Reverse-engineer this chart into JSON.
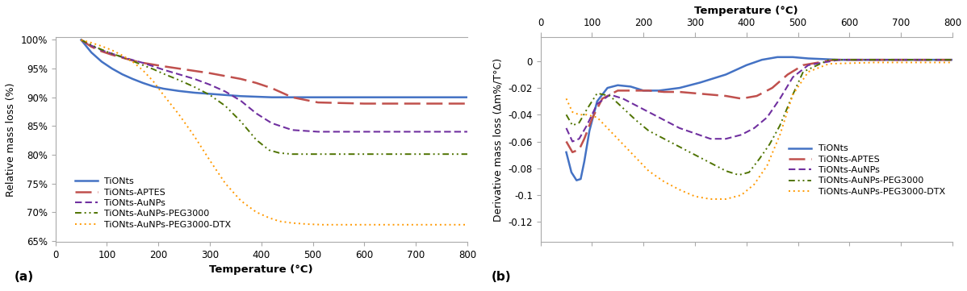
{
  "panel_a": {
    "xlabel": "Temperature (°C)",
    "ylabel": "Relative mass loss (%)",
    "xlim": [
      0,
      800
    ],
    "ylim": [
      0.648,
      1.005
    ],
    "yticks": [
      0.65,
      0.7,
      0.75,
      0.8,
      0.85,
      0.9,
      0.95,
      1.0
    ],
    "ytick_labels": [
      "65%",
      "70%",
      "75%",
      "80%",
      "85%",
      "90%",
      "95%",
      "100%"
    ],
    "xticks": [
      0,
      100,
      200,
      300,
      400,
      500,
      600,
      700,
      800
    ],
    "series": {
      "TiONts": {
        "color": "#4472C4",
        "lw": 1.8,
        "ls": "solid",
        "x": [
          50,
          70,
          90,
          110,
          130,
          150,
          170,
          190,
          210,
          240,
          270,
          300,
          330,
          360,
          390,
          420,
          460,
          520,
          600,
          700,
          800
        ],
        "y": [
          1.0,
          0.978,
          0.962,
          0.95,
          0.94,
          0.932,
          0.925,
          0.919,
          0.915,
          0.911,
          0.908,
          0.906,
          0.904,
          0.902,
          0.901,
          0.9,
          0.9,
          0.9,
          0.9,
          0.9,
          0.9
        ]
      },
      "TiONts-APTES": {
        "color": "#C0504D",
        "lw": 1.8,
        "ls": "dashed_long",
        "x": [
          50,
          70,
          90,
          110,
          130,
          150,
          170,
          190,
          210,
          240,
          270,
          300,
          330,
          360,
          390,
          420,
          460,
          510,
          600,
          700,
          800
        ],
        "y": [
          1.0,
          0.988,
          0.98,
          0.974,
          0.969,
          0.964,
          0.96,
          0.957,
          0.954,
          0.95,
          0.946,
          0.942,
          0.937,
          0.932,
          0.925,
          0.916,
          0.9,
          0.891,
          0.889,
          0.889,
          0.889
        ]
      },
      "TiONts-AuNPs": {
        "color": "#7030A0",
        "lw": 1.5,
        "ls": "dashed_short",
        "x": [
          50,
          70,
          90,
          110,
          130,
          150,
          170,
          190,
          210,
          240,
          270,
          300,
          330,
          360,
          390,
          420,
          460,
          510,
          600,
          700,
          800
        ],
        "y": [
          1.0,
          0.99,
          0.982,
          0.976,
          0.97,
          0.965,
          0.96,
          0.954,
          0.948,
          0.94,
          0.932,
          0.922,
          0.91,
          0.894,
          0.872,
          0.855,
          0.843,
          0.84,
          0.84,
          0.84,
          0.84
        ]
      },
      "TiONts-AuNPs-PEG3000": {
        "color": "#4F7300",
        "lw": 1.4,
        "ls": "dashed_dot",
        "x": [
          50,
          70,
          90,
          110,
          130,
          150,
          170,
          190,
          210,
          240,
          270,
          300,
          330,
          360,
          390,
          415,
          435,
          460,
          500,
          600,
          700,
          800
        ],
        "y": [
          1.0,
          0.991,
          0.983,
          0.976,
          0.97,
          0.963,
          0.956,
          0.949,
          0.941,
          0.93,
          0.918,
          0.904,
          0.885,
          0.858,
          0.826,
          0.808,
          0.803,
          0.801,
          0.801,
          0.801,
          0.801,
          0.801
        ]
      },
      "TiONts-AuNPs-PEG3000-DTX": {
        "color": "#FF9900",
        "lw": 1.4,
        "ls": "dotted",
        "x": [
          50,
          70,
          90,
          110,
          130,
          150,
          170,
          190,
          210,
          240,
          270,
          300,
          330,
          360,
          390,
          415,
          435,
          460,
          490,
          520,
          600,
          700,
          800
        ],
        "y": [
          1.0,
          0.995,
          0.989,
          0.982,
          0.973,
          0.962,
          0.947,
          0.928,
          0.904,
          0.87,
          0.832,
          0.79,
          0.75,
          0.72,
          0.7,
          0.69,
          0.684,
          0.681,
          0.679,
          0.678,
          0.678,
          0.678,
          0.678
        ]
      }
    },
    "legend_order": [
      "TiONts",
      "TiONts-APTES",
      "TiONts-AuNPs",
      "TiONts-AuNPs-PEG3000",
      "TiONts-AuNPs-PEG3000-DTX"
    ],
    "label": "(a)"
  },
  "panel_b": {
    "top_xlabel": "Temperature (°C)",
    "ylabel": "Derivative mass loss (Δm%/T°C)",
    "xlim": [
      0,
      800
    ],
    "ylim": [
      -0.135,
      0.018
    ],
    "yticks": [
      0.0,
      -0.02,
      -0.04,
      -0.06,
      -0.08,
      -0.1,
      -0.12
    ],
    "ytick_labels": [
      "0",
      "-0.02",
      "-0.04",
      "-0.06",
      "-0.08",
      "-0.1",
      "-0.12"
    ],
    "xticks": [
      0,
      100,
      200,
      300,
      400,
      500,
      600,
      700,
      800
    ],
    "series": {
      "TiONts": {
        "color": "#4472C4",
        "lw": 1.8,
        "ls": "solid",
        "x": [
          50,
          60,
          70,
          78,
          85,
          95,
          110,
          130,
          150,
          175,
          200,
          230,
          270,
          310,
          360,
          400,
          430,
          460,
          490,
          520,
          580,
          650,
          800
        ],
        "y": [
          -0.068,
          -0.083,
          -0.089,
          -0.088,
          -0.075,
          -0.052,
          -0.03,
          -0.02,
          -0.018,
          -0.019,
          -0.022,
          -0.022,
          -0.02,
          -0.016,
          -0.01,
          -0.003,
          0.001,
          0.003,
          0.003,
          0.002,
          0.001,
          0.001,
          0.001
        ]
      },
      "TiONts-APTES": {
        "color": "#C0504D",
        "lw": 1.8,
        "ls": "dashed_long",
        "x": [
          50,
          62,
          75,
          85,
          100,
          120,
          150,
          180,
          210,
          240,
          270,
          300,
          330,
          360,
          390,
          420,
          450,
          480,
          510,
          570,
          650,
          800
        ],
        "y": [
          -0.06,
          -0.068,
          -0.066,
          -0.058,
          -0.043,
          -0.028,
          -0.022,
          -0.022,
          -0.022,
          -0.023,
          -0.023,
          -0.024,
          -0.025,
          -0.026,
          -0.028,
          -0.026,
          -0.02,
          -0.01,
          -0.003,
          0.001,
          0.001,
          0.001
        ]
      },
      "TiONts-AuNPs": {
        "color": "#7030A0",
        "lw": 1.5,
        "ls": "dashed_short",
        "x": [
          50,
          62,
          75,
          90,
          110,
          135,
          160,
          185,
          210,
          240,
          270,
          300,
          330,
          360,
          390,
          415,
          440,
          465,
          490,
          520,
          580,
          650,
          800
        ],
        "y": [
          -0.05,
          -0.06,
          -0.058,
          -0.048,
          -0.032,
          -0.025,
          -0.028,
          -0.033,
          -0.038,
          -0.044,
          -0.05,
          -0.054,
          -0.058,
          -0.058,
          -0.055,
          -0.05,
          -0.042,
          -0.028,
          -0.012,
          -0.003,
          0.001,
          0.001,
          0.001
        ]
      },
      "TiONts-AuNPs-PEG3000": {
        "color": "#4F7300",
        "lw": 1.4,
        "ls": "dashed_dot",
        "x": [
          50,
          62,
          75,
          90,
          110,
          135,
          160,
          185,
          210,
          240,
          270,
          300,
          330,
          360,
          385,
          405,
          425,
          445,
          465,
          490,
          510,
          560,
          650,
          800
        ],
        "y": [
          -0.04,
          -0.048,
          -0.046,
          -0.036,
          -0.024,
          -0.026,
          -0.035,
          -0.044,
          -0.052,
          -0.058,
          -0.064,
          -0.07,
          -0.076,
          -0.082,
          -0.085,
          -0.083,
          -0.073,
          -0.062,
          -0.048,
          -0.025,
          -0.008,
          0.001,
          0.001,
          0.001
        ]
      },
      "TiONts-AuNPs-PEG3000-DTX": {
        "color": "#FF9900",
        "lw": 1.4,
        "ls": "dotted",
        "x": [
          50,
          62,
          75,
          90,
          110,
          135,
          160,
          185,
          210,
          240,
          270,
          300,
          330,
          360,
          390,
          415,
          440,
          465,
          490,
          520,
          560,
          650,
          800
        ],
        "y": [
          -0.028,
          -0.038,
          -0.04,
          -0.04,
          -0.042,
          -0.052,
          -0.062,
          -0.072,
          -0.082,
          -0.09,
          -0.096,
          -0.101,
          -0.103,
          -0.103,
          -0.1,
          -0.092,
          -0.078,
          -0.055,
          -0.025,
          -0.008,
          -0.002,
          -0.001,
          -0.001
        ]
      }
    },
    "legend_order": [
      "TiONts",
      "TiONts-APTES",
      "TiONts-AuNPs",
      "TiONts-AuNPs-PEG3000",
      "TiONts-AuNPs-PEG3000-DTX"
    ],
    "label": "(b)"
  },
  "background_color": "#ffffff"
}
